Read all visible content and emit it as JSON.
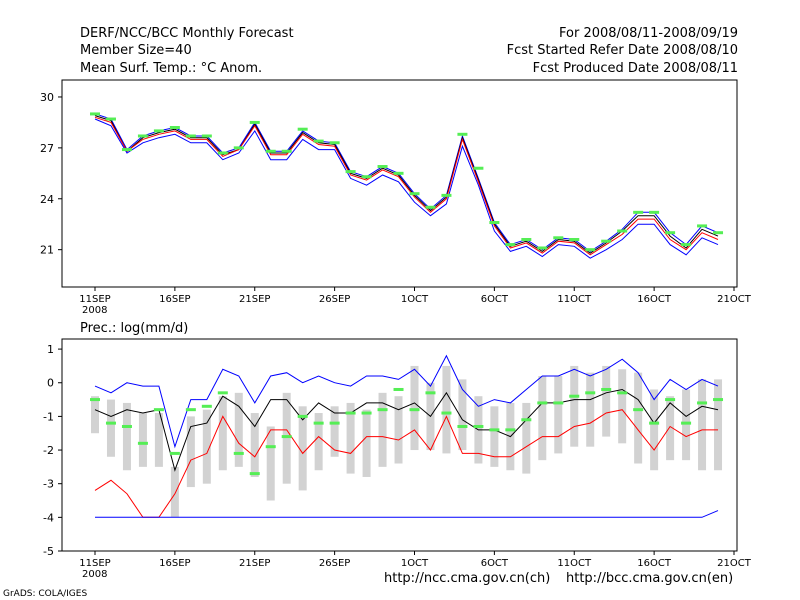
{
  "header": {
    "title": "DERF/NCC/BCC Monthly Forecast",
    "member_size": "Member Size=40",
    "variable": "Mean Surf. Temp.: °C Anom.",
    "period": "For 2008/08/11-2008/09/19",
    "fcst_started": "Fcst Started Refer Date 2008/08/10",
    "fcst_produced": "Fcst Produced Date 2008/08/11"
  },
  "footer": {
    "url_ch": "http://ncc.cma.gov.cn(ch)",
    "url_en": "http://bcc.cma.gov.cn(en)",
    "credit": "GrADS: COLA/IGES"
  },
  "colors": {
    "upper": "#0000ff",
    "mean": "#000000",
    "lower": "#ff0000",
    "obs_marker": "#55ee55",
    "bar": "#d2d2d2"
  },
  "chart_data": [
    {
      "type": "line",
      "title": "Mean Surf. Temp.: °C Anom.",
      "xlabel": "",
      "ylabel": "",
      "ylim": [
        18.8,
        31.0
      ],
      "yticks": [
        "30",
        "27",
        "24",
        "21"
      ],
      "ytick_values": [
        30,
        27,
        24,
        21
      ],
      "xlim": [
        0,
        39
      ],
      "xticks": [
        "11SEP",
        "16SEP",
        "21SEP",
        "26SEP",
        "1OCT",
        "6OCT",
        "11OCT",
        "16OCT",
        "21OCT"
      ],
      "xtick_days": [
        0,
        5,
        10,
        15,
        20,
        25,
        30,
        35,
        40
      ],
      "year_label": "2008",
      "series": [
        {
          "name": "upper",
          "values": [
            29.0,
            28.7,
            26.9,
            27.7,
            28.0,
            28.2,
            27.7,
            27.7,
            26.7,
            27.0,
            28.5,
            26.8,
            26.8,
            28.0,
            27.4,
            27.3,
            25.6,
            25.3,
            25.9,
            25.5,
            24.3,
            23.4,
            24.2,
            27.7,
            25.2,
            22.6,
            21.3,
            21.6,
            21.0,
            21.7,
            21.6,
            20.9,
            21.5,
            22.2,
            23.2,
            23.2,
            22.0,
            21.3,
            22.4,
            22.0
          ]
        },
        {
          "name": "mean",
          "values": [
            28.9,
            28.6,
            26.8,
            27.6,
            27.9,
            28.1,
            27.6,
            27.6,
            26.6,
            26.9,
            28.4,
            26.7,
            26.7,
            27.9,
            27.3,
            27.2,
            25.5,
            25.2,
            25.8,
            25.4,
            24.2,
            23.3,
            24.1,
            27.6,
            25.1,
            22.5,
            21.2,
            21.5,
            20.9,
            21.6,
            21.5,
            20.8,
            21.4,
            22.1,
            23.0,
            23.0,
            21.8,
            21.1,
            22.2,
            21.8
          ]
        },
        {
          "name": "lower",
          "values": [
            28.8,
            28.5,
            26.8,
            27.5,
            27.8,
            28.0,
            27.5,
            27.5,
            26.5,
            26.9,
            28.3,
            26.6,
            26.6,
            27.8,
            27.2,
            27.1,
            25.4,
            25.1,
            25.7,
            25.3,
            24.1,
            23.2,
            24.0,
            27.5,
            25.0,
            22.4,
            21.1,
            21.4,
            20.8,
            21.5,
            21.4,
            20.7,
            21.3,
            21.9,
            22.8,
            22.8,
            21.6,
            21.0,
            22.0,
            21.6
          ]
        },
        {
          "name": "low_envelope",
          "values": [
            28.7,
            28.3,
            26.7,
            27.3,
            27.6,
            27.8,
            27.3,
            27.3,
            26.3,
            26.7,
            28.0,
            26.3,
            26.3,
            27.5,
            26.9,
            26.9,
            25.2,
            24.8,
            25.4,
            25.0,
            23.8,
            23.0,
            23.7,
            27.1,
            24.8,
            22.1,
            20.9,
            21.2,
            20.6,
            21.3,
            21.2,
            20.5,
            21.0,
            21.6,
            22.5,
            22.5,
            21.3,
            20.7,
            21.7,
            21.3
          ]
        },
        {
          "name": "observed",
          "values": [
            29.0,
            28.7,
            26.9,
            27.7,
            28.0,
            28.2,
            27.7,
            27.7,
            26.7,
            27.0,
            28.5,
            26.8,
            26.8,
            28.1,
            27.4,
            27.3,
            25.6,
            25.3,
            25.9,
            25.5,
            24.3,
            23.5,
            24.2,
            27.8,
            25.8,
            22.6,
            21.3,
            21.6,
            21.1,
            21.7,
            21.6,
            21.0,
            21.5,
            22.1,
            23.2,
            23.2,
            22.0,
            21.3,
            22.4,
            22.0
          ]
        }
      ]
    },
    {
      "type": "bar",
      "title": "Prec.: log(mm/d)",
      "xlabel": "",
      "ylabel": "",
      "ylim": [
        -5,
        1.3
      ],
      "yticks": [
        "1",
        "0",
        "-1",
        "-2",
        "-3",
        "-4",
        "-5"
      ],
      "ytick_values": [
        1,
        0,
        -1,
        -2,
        -3,
        -4,
        -5
      ],
      "xlim": [
        0,
        39
      ],
      "xticks": [
        "11SEP",
        "16SEP",
        "21SEP",
        "26SEP",
        "1OCT",
        "6OCT",
        "11OCT",
        "16OCT",
        "21OCT"
      ],
      "xtick_days": [
        0,
        5,
        10,
        15,
        20,
        25,
        30,
        35,
        40
      ],
      "year_label": "2008",
      "bars": {
        "top": [
          -0.4,
          -0.5,
          -0.6,
          -0.9,
          -0.9,
          -2.5,
          -1.0,
          -0.8,
          -0.4,
          -0.3,
          -0.9,
          -1.3,
          -0.3,
          -0.7,
          -0.9,
          -0.7,
          -0.6,
          -0.8,
          -0.3,
          -0.4,
          0.5,
          0.0,
          0.5,
          0.1,
          -0.4,
          -0.7,
          -0.6,
          -0.6,
          0.2,
          0.2,
          0.5,
          0.3,
          0.5,
          0.4,
          0.3,
          -0.2,
          -0.4,
          -0.2,
          0.1,
          0.1
        ],
        "bottom": [
          -1.5,
          -2.2,
          -2.6,
          -2.5,
          -2.5,
          -4.0,
          -3.1,
          -3.0,
          -2.6,
          -2.5,
          -2.8,
          -3.5,
          -3.0,
          -3.2,
          -2.6,
          -2.2,
          -2.7,
          -2.8,
          -2.5,
          -2.4,
          -2.0,
          -2.0,
          -2.1,
          -2.0,
          -2.4,
          -2.5,
          -2.6,
          -2.7,
          -2.3,
          -2.1,
          -1.9,
          -1.9,
          -1.6,
          -1.8,
          -2.4,
          -2.6,
          -2.3,
          -2.3,
          -2.6,
          -2.6
        ]
      },
      "series": [
        {
          "name": "upper",
          "values": [
            -0.1,
            -0.3,
            0.0,
            -0.1,
            -0.1,
            -1.9,
            -0.5,
            -0.5,
            0.4,
            0.2,
            -0.6,
            0.2,
            0.3,
            0.0,
            0.2,
            0.0,
            -0.1,
            0.2,
            0.2,
            0.1,
            0.4,
            -0.1,
            0.8,
            -0.2,
            -0.7,
            -0.5,
            -0.6,
            -0.2,
            0.2,
            0.2,
            0.4,
            0.2,
            0.4,
            0.7,
            0.3,
            -0.5,
            0.1,
            -0.2,
            0.1,
            -0.1
          ]
        },
        {
          "name": "mean",
          "values": [
            -0.8,
            -1.0,
            -0.8,
            -0.9,
            -0.8,
            -2.6,
            -1.3,
            -1.2,
            -0.4,
            -0.7,
            -1.3,
            -0.5,
            -0.5,
            -1.1,
            -0.6,
            -0.9,
            -0.9,
            -0.6,
            -0.6,
            -0.8,
            -0.6,
            -1.0,
            -0.3,
            -1.1,
            -1.4,
            -1.4,
            -1.6,
            -1.1,
            -0.6,
            -0.6,
            -0.5,
            -0.5,
            -0.3,
            -0.2,
            -0.5,
            -1.2,
            -0.6,
            -1.0,
            -0.7,
            -0.8
          ]
        },
        {
          "name": "lower",
          "values": [
            -3.2,
            -2.9,
            -3.3,
            -4.0,
            -4.0,
            -3.3,
            -2.3,
            -2.1,
            -1.0,
            -1.8,
            -2.2,
            -1.4,
            -1.4,
            -2.1,
            -1.6,
            -2.0,
            -2.1,
            -1.6,
            -1.6,
            -1.7,
            -1.4,
            -2.0,
            -1.0,
            -2.1,
            -2.1,
            -2.2,
            -2.2,
            -1.9,
            -1.6,
            -1.6,
            -1.3,
            -1.2,
            -0.9,
            -0.8,
            -1.4,
            -2.0,
            -1.3,
            -1.6,
            -1.4,
            -1.4
          ]
        },
        {
          "name": "min",
          "values": [
            -4.0,
            -4.0,
            -4.0,
            -4.0,
            -4.0,
            -4.0,
            -4.0,
            -4.0,
            -4.0,
            -4.0,
            -4.0,
            -4.0,
            -4.0,
            -4.0,
            -4.0,
            -4.0,
            -4.0,
            -4.0,
            -4.0,
            -4.0,
            -4.0,
            -4.0,
            -4.0,
            -4.0,
            -4.0,
            -4.0,
            -4.0,
            -4.0,
            -4.0,
            -4.0,
            -4.0,
            -4.0,
            -4.0,
            -4.0,
            -4.0,
            -4.0,
            -4.0,
            -4.0,
            -4.0,
            -3.8
          ]
        },
        {
          "name": "observed",
          "values": [
            -0.5,
            -1.2,
            -1.3,
            -1.8,
            -0.8,
            -2.1,
            -0.8,
            -0.7,
            -0.3,
            -2.1,
            -2.7,
            -1.9,
            -1.6,
            -1.0,
            -1.2,
            -1.2,
            -0.9,
            -0.9,
            -0.8,
            -0.2,
            -0.8,
            -0.3,
            -0.9,
            -1.3,
            -1.3,
            -1.4,
            -1.4,
            -1.1,
            -0.6,
            -0.6,
            -0.4,
            -0.3,
            -0.2,
            -0.3,
            -0.8,
            -1.2,
            -0.5,
            -1.2,
            -0.6,
            -0.5
          ]
        }
      ]
    }
  ]
}
